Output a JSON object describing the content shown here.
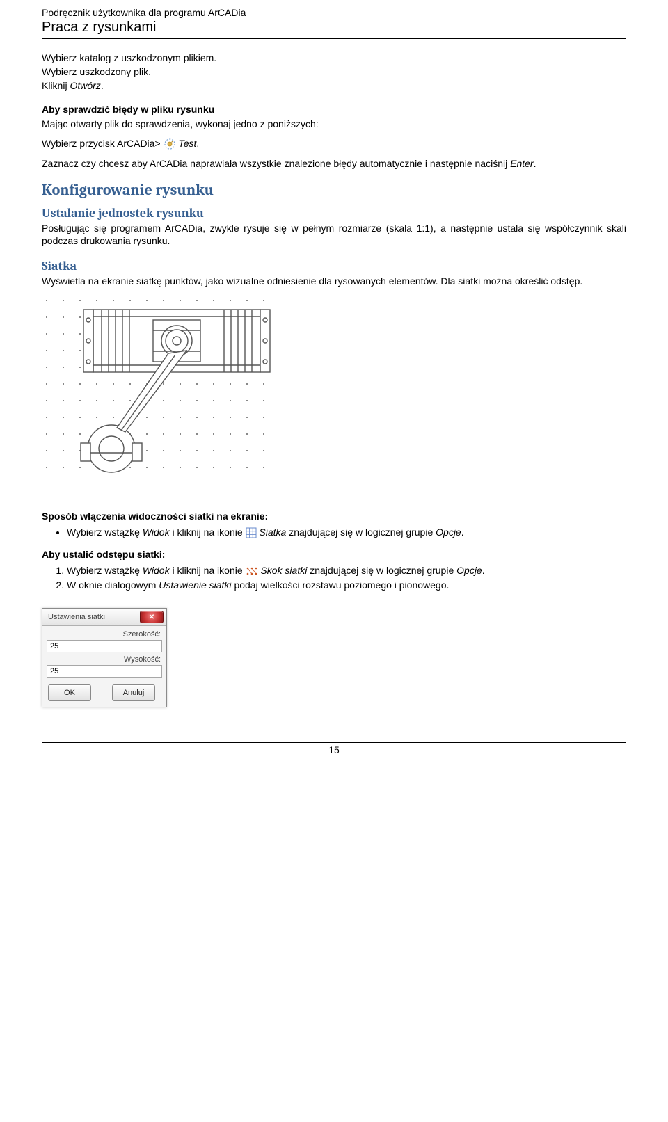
{
  "header": {
    "line1": "Podręcznik użytkownika dla programu ArCADia",
    "line2": "Praca z rysunkami"
  },
  "intro": {
    "l1": "Wybierz katalog z uszkodzonym plikiem.",
    "l2": "Wybierz uszkodzony plik.",
    "l3_a": "Kliknij ",
    "l3_b": "Otwórz",
    "l3_c": "."
  },
  "check": {
    "title": "Aby sprawdzić błędy w pliku rysunku",
    "p1": "Mając otwarty plik do sprawdzenia, wykonaj jedno z poniższych:",
    "p2_a": "Wybierz przycisk ArCADia> ",
    "p2_b": " Test",
    "p2_c": ".",
    "p3_a": "Zaznacz czy chcesz aby ArCADia naprawiała wszystkie znalezione błędy automatycznie i następnie naciśnij ",
    "p3_b": "Enter",
    "p3_c": "."
  },
  "konfig": {
    "h2": "Konfigurowanie rysunku",
    "h3a": "Ustalanie jednostek rysunku",
    "p_a": "Posługując się programem ArCADia, zwykle rysuje się w pełnym rozmiarze (skala 1:1), a następnie ustala się współczynnik skali podczas drukowania rysunku.",
    "h3b": "Siatka",
    "p_b": "Wyświetla na ekranie siatkę punktów, jako wizualne odniesienie dla rysowanych elementów. Dla siatki można określić odstęp."
  },
  "figure": {
    "dot_color": "#888888",
    "line_color": "#555555",
    "fill_color": "#ffffff",
    "bg": "#ffffff",
    "cols": 14,
    "rows": 11,
    "spacing": 24
  },
  "sposob": {
    "title": "Sposób włączenia widoczności siatki na ekranie:",
    "bullet_a": "Wybierz wstążkę ",
    "bullet_b": "Widok ",
    "bullet_c": "i kliknij na ikonie ",
    "bullet_d": " Siatka",
    "bullet_e": " znajdującej się w logicznej grupie ",
    "bullet_f": "Opcje",
    "bullet_g": "."
  },
  "odstep": {
    "title": "Aby ustalić odstępu siatki:",
    "li1_a": "Wybierz wstążkę ",
    "li1_b": "Widok ",
    "li1_c": "i kliknij na ikonie ",
    "li1_d": " Skok siatki",
    "li1_e": " znajdującej się w logicznej grupie ",
    "li1_f": "Opcje",
    "li1_g": ".",
    "li2_a": "W oknie dialogowym ",
    "li2_b": "Ustawienie siatki ",
    "li2_c": "podaj wielkości rozstawu poziomego i pionowego."
  },
  "dialog": {
    "title": "Ustawienia siatki",
    "label_w": "Szerokość:",
    "value_w": "25",
    "label_h": "Wysokość:",
    "value_h": "25",
    "btn_ok": "OK",
    "btn_cancel": "Anuluj"
  },
  "icons": {
    "test_icon_color1": "#d9b24a",
    "test_icon_color2": "#7aa3d4",
    "grid_icon_color": "#6688cc",
    "snap_icon_color": "#cc5522"
  },
  "page_number": "15"
}
